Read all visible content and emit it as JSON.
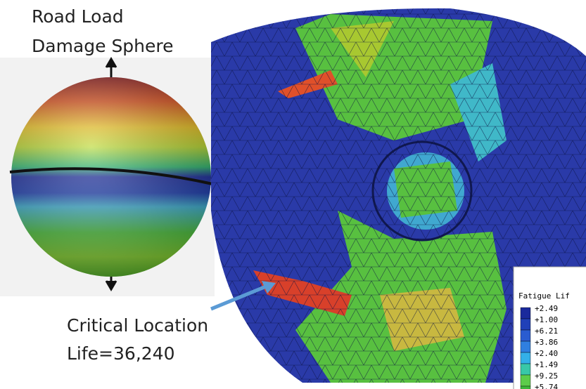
{
  "labels": {
    "sphere_title_line1": "Road Load",
    "sphere_title_line2": "Damage Sphere",
    "critical_line1": "Critical Location",
    "critical_line2": "Life=36,240"
  },
  "legend": {
    "title": "Fatigue Lif",
    "entries": [
      "+2.49",
      "+1.00",
      "+6.21",
      "+3.86",
      "+2.40",
      "+1.49",
      "+9.25",
      "+5.74"
    ],
    "colors": [
      "#1a2a9c",
      "#2040b8",
      "#2a5cd0",
      "#2f7fe0",
      "#33b0e8",
      "#38c8a8",
      "#5ccc4a",
      "#3cb83a"
    ]
  }
}
